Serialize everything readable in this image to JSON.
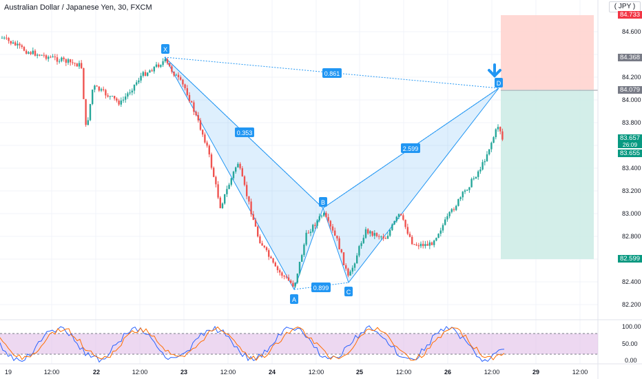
{
  "header": {
    "title": "Australian Dollar / Japanese Yen, 30, FXCM",
    "currency": "( JPY )"
  },
  "price_axis": [
    "84.600",
    "84.400",
    "84.200",
    "84.000",
    "83.800",
    "83.600",
    "83.400",
    "83.200",
    "83.000",
    "82.800",
    "82.600",
    "82.400",
    "82.200"
  ],
  "price_tags": {
    "stop": "84.733",
    "mid": "84.368",
    "entry": "84.079",
    "last": "83.657",
    "countdown": "26:09",
    "bid": "83.655",
    "target": "82.599"
  },
  "osc_axis": [
    "100.00",
    "50.00",
    "0.00"
  ],
  "time_axis": [
    "19",
    "12:00",
    "22",
    "12:00",
    "23",
    "12:00",
    "24",
    "12:00",
    "25",
    "12:00",
    "26",
    "12:00",
    "29",
    "12:00"
  ],
  "pattern": {
    "points": {
      "x": "X",
      "a": "A",
      "b": "B",
      "c": "C",
      "d": "D"
    },
    "ratios": {
      "xd": "0.861",
      "xb": "0.353",
      "ac": "0.899",
      "bd": "2.599"
    }
  },
  "colors": {
    "up": "#26a69a",
    "down": "#ef5350",
    "pattern": "#2196f3",
    "stop_zone": "#ffd1cc",
    "target_zone": "#cbebe5"
  }
}
